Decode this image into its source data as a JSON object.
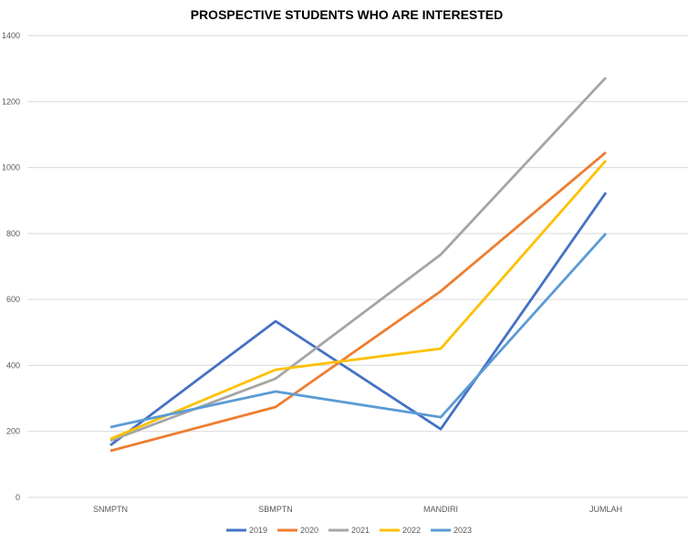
{
  "chart_data": {
    "type": "line",
    "title": "PROSPECTIVE STUDENTS WHO ARE INTERESTED",
    "categories": [
      "SNMPTN",
      "SBMPTN",
      "MANDIRI",
      "JUMLAH"
    ],
    "ylim": [
      0,
      1400
    ],
    "yticks": [
      0,
      200,
      400,
      600,
      800,
      1000,
      1200,
      1400
    ],
    "grid": true,
    "legend": "bottom",
    "series": [
      {
        "name": "2019",
        "color": "#4472C4",
        "values": [
          158,
          534,
          207,
          924
        ]
      },
      {
        "name": "2020",
        "color": "#ED7D31",
        "values": [
          141,
          274,
          625,
          1046
        ]
      },
      {
        "name": "2021",
        "color": "#A5A5A5",
        "values": [
          172,
          360,
          736,
          1273
        ]
      },
      {
        "name": "2022",
        "color": "#FFC000",
        "values": [
          177,
          387,
          451,
          1021
        ]
      },
      {
        "name": "2023",
        "color": "#5B9BD5",
        "values": [
          213,
          321,
          243,
          800
        ]
      }
    ]
  }
}
